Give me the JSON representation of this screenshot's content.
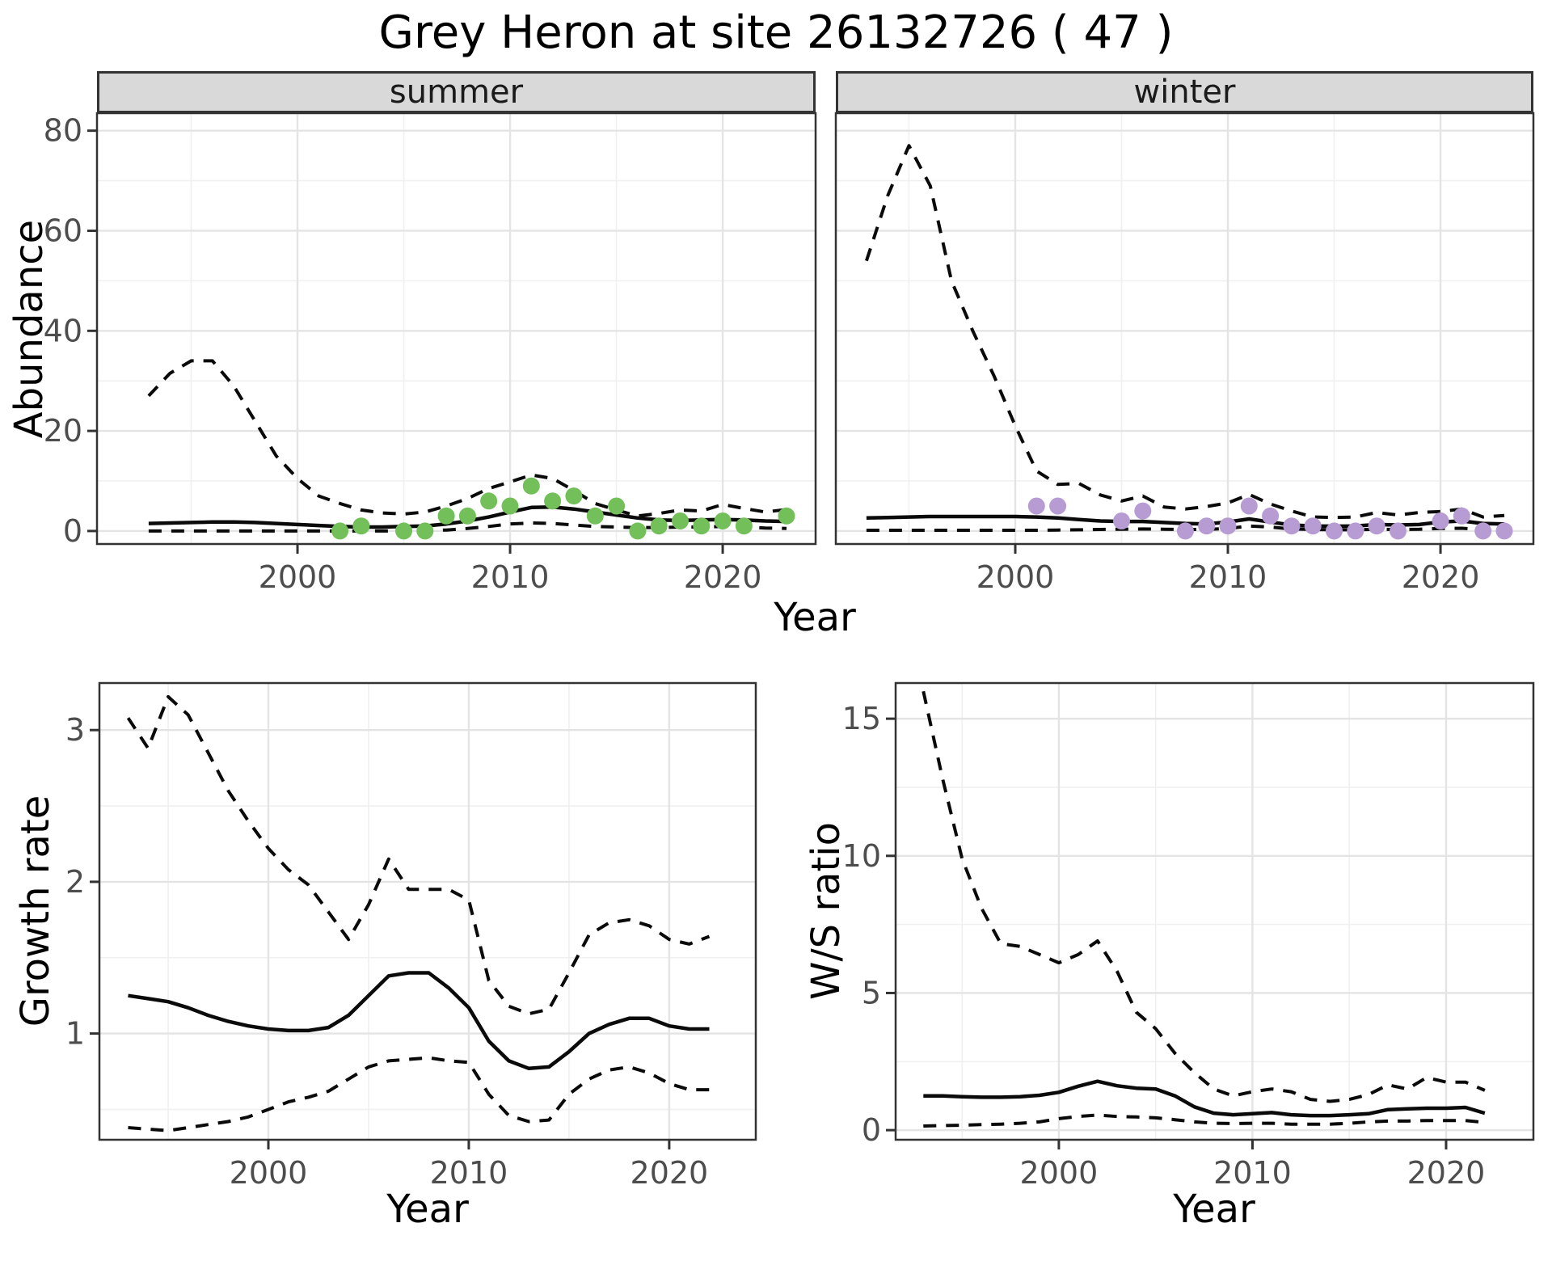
{
  "title": "Grey Heron at site 26132726 ( 47 )",
  "facets": [
    "summer",
    "winter"
  ],
  "labels": {
    "x": "Year",
    "abundance": "Abundance",
    "growth": "Growth rate",
    "ws": "W/S ratio"
  },
  "colors": {
    "summer_point": "#73BF59",
    "winter_point": "#B79CD4",
    "line": "#0a0a0a",
    "grid_major": "#E4E4E4",
    "grid_minor": "#F0F0F0",
    "panel_border": "#333333",
    "tick_text": "#4D4D4D",
    "strip_bg": "#D9D9D9"
  },
  "chart_data": [
    {
      "id": "abundance-summer",
      "type": "line",
      "facet": "summer",
      "xlabel": "Year",
      "ylabel": "Abundance",
      "x": [
        1993,
        1994,
        1995,
        1996,
        1997,
        1998,
        1999,
        2000,
        2001,
        2002,
        2003,
        2004,
        2005,
        2006,
        2007,
        2008,
        2009,
        2010,
        2011,
        2012,
        2013,
        2014,
        2015,
        2016,
        2017,
        2018,
        2019,
        2020,
        2021,
        2022,
        2023
      ],
      "series": [
        {
          "name": "upper_ci_dashed",
          "values": [
            27,
            31.5,
            34,
            34,
            29,
            22,
            15,
            10.5,
            7,
            5.5,
            4.2,
            3.6,
            3.4,
            3.8,
            5,
            6.5,
            8.5,
            9.8,
            11.2,
            10.5,
            8.1,
            5.5,
            4.2,
            3.0,
            3.5,
            4.2,
            4.0,
            5.3,
            4.5,
            3.8,
            4.3
          ]
        },
        {
          "name": "median_solid",
          "values": [
            1.5,
            1.6,
            1.7,
            1.8,
            1.8,
            1.7,
            1.5,
            1.3,
            1.1,
            0.9,
            0.8,
            0.8,
            0.9,
            1.0,
            1.4,
            2.0,
            2.8,
            3.8,
            4.7,
            4.8,
            4.4,
            3.8,
            3.2,
            2.6,
            2.2,
            2.1,
            2.2,
            2.3,
            2.2,
            2.0,
            1.9
          ]
        },
        {
          "name": "lower_ci_dashed",
          "values": [
            0,
            0,
            0,
            0,
            0,
            0,
            0,
            0,
            0,
            0,
            0,
            0,
            0,
            0.1,
            0.2,
            0.5,
            0.9,
            1.4,
            1.6,
            1.5,
            1.2,
            0.9,
            0.8,
            0.7,
            0.7,
            0.8,
            0.8,
            0.9,
            0.8,
            0.6,
            0.5
          ]
        }
      ],
      "observed_points": {
        "years": [
          2002,
          2003,
          2005,
          2006,
          2007,
          2008,
          2009,
          2010,
          2011,
          2012,
          2013,
          2014,
          2015,
          2016,
          2017,
          2018,
          2019,
          2020,
          2021,
          2023
        ],
        "values": [
          0,
          1,
          0,
          0,
          3,
          3,
          6,
          5,
          9,
          6,
          7,
          3,
          5,
          0,
          1,
          2,
          1,
          2,
          1,
          3
        ]
      },
      "point_color": "#73BF59",
      "x_ticks": [
        2000,
        2010,
        2020
      ],
      "y_ticks": [
        0,
        20,
        40,
        60,
        80
      ],
      "xlim": [
        1990.57,
        2024.37
      ],
      "ylim": [
        -2.6,
        83.5
      ],
      "grid": true,
      "legend": "none"
    },
    {
      "id": "abundance-winter",
      "type": "line",
      "facet": "winter",
      "xlabel": "Year",
      "ylabel": "Abundance",
      "x": [
        1993,
        1994,
        1995,
        1996,
        1997,
        1998,
        1999,
        2000,
        2001,
        2002,
        2003,
        2004,
        2005,
        2006,
        2007,
        2008,
        2009,
        2010,
        2011,
        2012,
        2013,
        2014,
        2015,
        2016,
        2017,
        2018,
        2019,
        2020,
        2021,
        2022,
        2023
      ],
      "series": [
        {
          "name": "upper_ci_dashed",
          "values": [
            54,
            67,
            77,
            69,
            50,
            40,
            31,
            21,
            12,
            9.3,
            9.5,
            7.2,
            6.0,
            7.0,
            4.8,
            4.4,
            4.9,
            5.6,
            7.3,
            5.4,
            4.0,
            2.8,
            2.7,
            2.8,
            3.7,
            3.2,
            3.7,
            3.9,
            4.4,
            2.8,
            3.1
          ]
        },
        {
          "name": "median_solid",
          "values": [
            2.6,
            2.7,
            2.8,
            2.9,
            2.9,
            2.9,
            2.9,
            2.9,
            2.8,
            2.6,
            2.3,
            2.0,
            1.9,
            1.9,
            1.7,
            1.5,
            1.4,
            1.8,
            2.4,
            1.8,
            1.2,
            1.0,
            0.95,
            1.0,
            1.3,
            1.2,
            1.3,
            1.8,
            2.0,
            1.5,
            1.4
          ]
        },
        {
          "name": "lower_ci_dashed",
          "values": [
            0.15,
            0.15,
            0.15,
            0.15,
            0.15,
            0.15,
            0.15,
            0.15,
            0.15,
            0.2,
            0.25,
            0.3,
            0.35,
            0.4,
            0.35,
            0.3,
            0.3,
            0.5,
            1.0,
            0.8,
            0.4,
            0.3,
            0.25,
            0.25,
            0.35,
            0.3,
            0.35,
            0.5,
            0.55,
            0.25,
            0.2
          ]
        }
      ],
      "observed_points": {
        "years": [
          2001,
          2002,
          2005,
          2006,
          2008,
          2009,
          2010,
          2011,
          2012,
          2013,
          2014,
          2015,
          2016,
          2017,
          2018,
          2020,
          2021,
          2022,
          2023
        ],
        "values": [
          5,
          5,
          2,
          4,
          0,
          1,
          1,
          5,
          3,
          1,
          1,
          0,
          0,
          1,
          0,
          2,
          3,
          0,
          0
        ]
      },
      "point_color": "#B79CD4",
      "x_ticks": [
        2000,
        2010,
        2020
      ],
      "y_ticks": [
        0,
        20,
        40,
        60,
        80
      ],
      "xlim": [
        1991.56,
        2024.37
      ],
      "ylim": [
        -2.6,
        83.5
      ],
      "grid": true,
      "legend": "none"
    },
    {
      "id": "growth-rate",
      "type": "line",
      "facet": null,
      "xlabel": "Year",
      "ylabel": "Growth rate",
      "x": [
        1993,
        1994,
        1995,
        1996,
        1997,
        1998,
        1999,
        2000,
        2001,
        2002,
        2003,
        2004,
        2005,
        2006,
        2007,
        2008,
        2009,
        2010,
        2011,
        2012,
        2013,
        2014,
        2015,
        2016,
        2017,
        2018,
        2019,
        2020,
        2021,
        2022
      ],
      "series": [
        {
          "name": "upper_ci_dashed",
          "values": [
            3.08,
            2.88,
            3.22,
            3.1,
            2.85,
            2.6,
            2.4,
            2.22,
            2.08,
            1.98,
            1.8,
            1.62,
            1.85,
            2.15,
            1.95,
            1.95,
            1.95,
            1.88,
            1.35,
            1.18,
            1.13,
            1.16,
            1.4,
            1.65,
            1.73,
            1.75,
            1.71,
            1.62,
            1.59,
            1.64
          ]
        },
        {
          "name": "median_solid",
          "values": [
            1.25,
            1.23,
            1.21,
            1.17,
            1.12,
            1.08,
            1.05,
            1.03,
            1.02,
            1.02,
            1.04,
            1.12,
            1.25,
            1.38,
            1.4,
            1.4,
            1.3,
            1.17,
            0.95,
            0.82,
            0.77,
            0.78,
            0.88,
            1.0,
            1.06,
            1.1,
            1.1,
            1.05,
            1.03,
            1.03
          ]
        },
        {
          "name": "lower_ci_dashed",
          "values": [
            0.38,
            0.37,
            0.36,
            0.38,
            0.4,
            0.42,
            0.45,
            0.5,
            0.55,
            0.58,
            0.62,
            0.7,
            0.78,
            0.82,
            0.83,
            0.84,
            0.82,
            0.81,
            0.6,
            0.46,
            0.42,
            0.43,
            0.6,
            0.7,
            0.76,
            0.78,
            0.74,
            0.67,
            0.63,
            0.63
          ]
        }
      ],
      "observed_points": {
        "years": [],
        "values": []
      },
      "point_color": null,
      "x_ticks": [
        2000,
        2010,
        2020
      ],
      "y_ticks": [
        1,
        2,
        3
      ],
      "xlim": [
        1991.57,
        2024.32
      ],
      "ylim": [
        0.3,
        3.31
      ],
      "grid": true,
      "legend": "none"
    },
    {
      "id": "ws-ratio",
      "type": "line",
      "facet": null,
      "xlabel": "Year",
      "ylabel": "W/S ratio",
      "x": [
        1993,
        1994,
        1995,
        1996,
        1997,
        1998,
        1999,
        2000,
        2001,
        2002,
        2003,
        2004,
        2005,
        2006,
        2007,
        2008,
        2009,
        2010,
        2011,
        2012,
        2013,
        2014,
        2015,
        2016,
        2017,
        2018,
        2019,
        2020,
        2021,
        2022
      ],
      "series": [
        {
          "name": "upper_ci_dashed",
          "values": [
            16.0,
            12.8,
            9.9,
            8.1,
            6.8,
            6.7,
            6.4,
            6.1,
            6.4,
            6.9,
            5.8,
            4.3,
            3.7,
            2.8,
            2.1,
            1.5,
            1.25,
            1.4,
            1.5,
            1.4,
            1.12,
            1.05,
            1.12,
            1.3,
            1.65,
            1.5,
            1.92,
            1.75,
            1.75,
            1.45
          ]
        },
        {
          "name": "median_solid",
          "values": [
            1.25,
            1.25,
            1.22,
            1.2,
            1.2,
            1.22,
            1.27,
            1.38,
            1.6,
            1.78,
            1.62,
            1.53,
            1.5,
            1.25,
            0.85,
            0.62,
            0.56,
            0.6,
            0.64,
            0.56,
            0.53,
            0.53,
            0.56,
            0.6,
            0.75,
            0.78,
            0.8,
            0.8,
            0.83,
            0.62
          ]
        },
        {
          "name": "lower_ci_dashed",
          "values": [
            0.15,
            0.17,
            0.18,
            0.2,
            0.22,
            0.25,
            0.3,
            0.42,
            0.5,
            0.55,
            0.5,
            0.48,
            0.45,
            0.38,
            0.3,
            0.25,
            0.24,
            0.25,
            0.25,
            0.22,
            0.22,
            0.22,
            0.25,
            0.3,
            0.33,
            0.33,
            0.35,
            0.35,
            0.35,
            0.28
          ]
        }
      ],
      "observed_points": {
        "years": [],
        "values": []
      },
      "point_color": null,
      "x_ticks": [
        2000,
        2010,
        2020
      ],
      "y_ticks": [
        0,
        5,
        10,
        15
      ],
      "xlim": [
        1991.57,
        2024.51
      ],
      "ylim": [
        -0.35,
        16.3
      ],
      "grid": true,
      "legend": "none"
    }
  ]
}
